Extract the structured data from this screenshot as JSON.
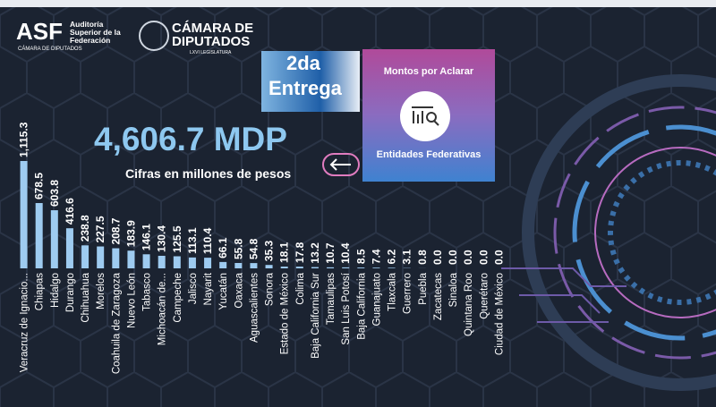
{
  "logo": {
    "acronym": "ASF",
    "name": "Auditoría Superior de la Federación",
    "chamber_small": "CÁMARA DE DIPUTADOS",
    "chamber_top": "CÁMARA DE",
    "chamber_bottom": "DIPUTADOS",
    "legislature": "LXVI LEGISLATURA"
  },
  "delivery": {
    "line1": "2da",
    "line2": "Entrega"
  },
  "card": {
    "title": "Montos por Aclarar",
    "subtitle": "Entidades Federativas"
  },
  "total": {
    "amount": "4,606.7 MDP",
    "note": "Cifras en millones de pesos"
  },
  "chart_data": {
    "type": "bar",
    "color": "#9ecbf0",
    "categories": [
      "Veracruz de Ignacio...",
      "Chiapas",
      "Hidalgo",
      "Durango",
      "Chihuahua",
      "Morelos",
      "Coahuila de Zaragoza",
      "Nuevo León",
      "Tabasco",
      "Michoacán de...",
      "Campeche",
      "Jalisco",
      "Nayarit",
      "Yucatán",
      "Oaxaca",
      "Aguascalientes",
      "Sonora",
      "Estado de México",
      "Colima",
      "Baja California Sur",
      "Tamaulipas",
      "San Luis Potosí",
      "Baja California",
      "Guanajuato",
      "Tlaxcala",
      "Guerrero",
      "Puebla",
      "Zacatecas",
      "Sinaloa",
      "Quintana Roo",
      "Querétaro",
      "Ciudad de México"
    ],
    "values": [
      1115.3,
      678.5,
      603.8,
      416.6,
      238.8,
      227.5,
      208.7,
      183.9,
      146.1,
      130.4,
      125.5,
      113.1,
      110.4,
      66.1,
      55.8,
      54.8,
      35.3,
      18.1,
      17.8,
      13.2,
      10.7,
      10.4,
      8.5,
      7.4,
      6.2,
      3.1,
      0.8,
      0,
      0,
      0,
      0,
      0
    ],
    "value_labels": [
      "1,115.3",
      "678.5",
      "603.8",
      "416.6",
      "238.8",
      "227.5",
      "208.7",
      "183.9",
      "146.1",
      "130.4",
      "125.5",
      "113.1",
      "110.4",
      "66.1",
      "55.8",
      "54.8",
      "35.3",
      "18.1",
      "17.8",
      "13.2",
      "10.7",
      "10.4",
      "8.5",
      "7.4",
      "6.2",
      "3.1",
      "0.8",
      "0.0",
      "0.0",
      "0.0",
      "0.0",
      "0.0"
    ]
  }
}
